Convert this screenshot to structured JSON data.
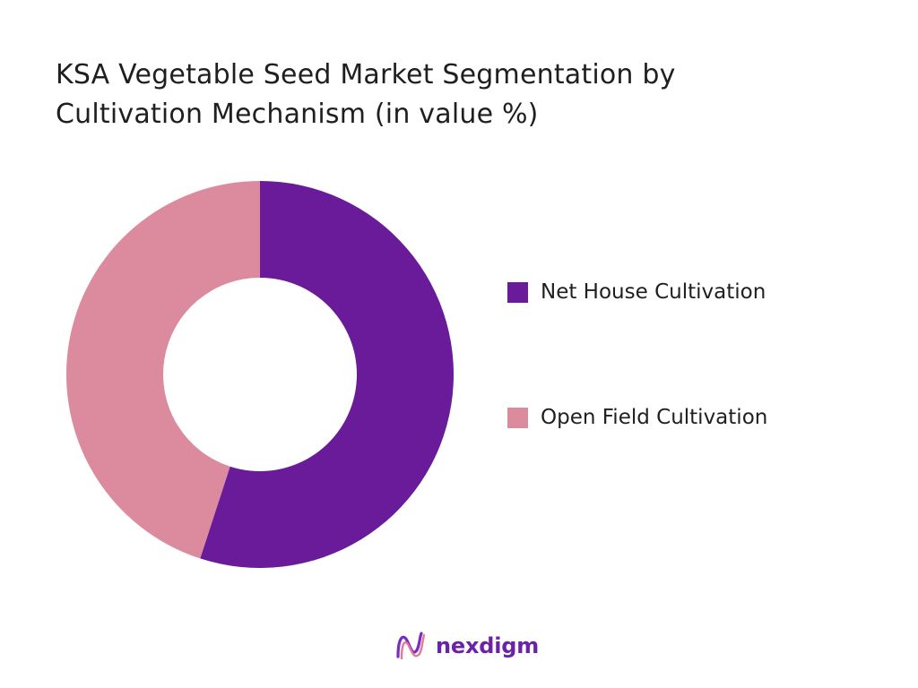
{
  "chart_data": {
    "type": "pie",
    "title": "KSA Vegetable Seed Market Segmentation by Cultivation Mechanism (in value %)",
    "title_lines": [
      "KSA Vegetable Seed Market Segmentation by",
      "Cultivation Mechanism (in value %)"
    ],
    "donut": true,
    "legend_position": "right",
    "categories": [
      "Net House Cultivation",
      "Open Field Cultivation"
    ],
    "values": [
      55,
      45
    ],
    "colors": [
      "#6a1b9a",
      "#dc8a9e"
    ]
  },
  "brand": {
    "name": "nexdigm",
    "icon": "nexdigm-logo-icon"
  }
}
